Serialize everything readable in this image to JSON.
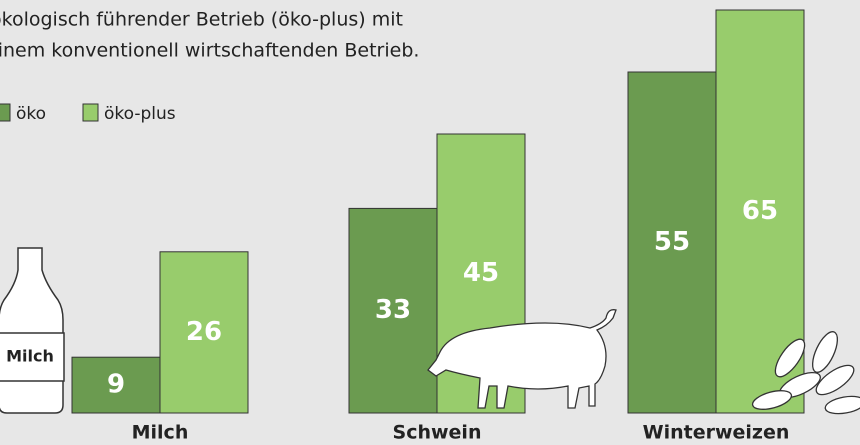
{
  "chart_data": {
    "type": "bar",
    "title_lines": [
      "ökologisch führender Betrieb (öko-plus) mit",
      "einem konventionell wirtschaftenden Betrieb."
    ],
    "categories": [
      "Milch",
      "Schwein",
      "Winterweizen"
    ],
    "series": [
      {
        "name": "öko",
        "color": "#6b9b50",
        "values": [
          9,
          33,
          55
        ]
      },
      {
        "name": "öko-plus",
        "color": "#98cc6c",
        "values": [
          26,
          45,
          65
        ]
      }
    ],
    "annotations": [
      "Milch"
    ]
  }
}
